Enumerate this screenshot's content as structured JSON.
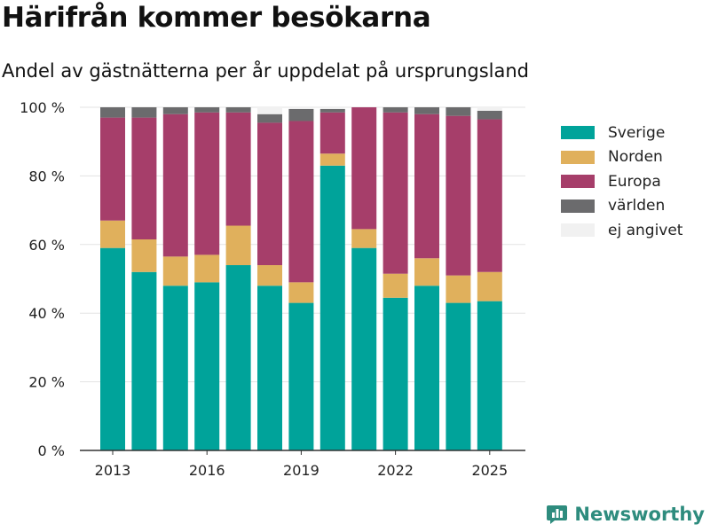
{
  "header": {
    "title": "Härifrån kommer besökarna",
    "subtitle": "Andel av gästnätterna per år uppdelat på ursprungsland"
  },
  "chart_data": {
    "type": "bar",
    "stacked": true,
    "x": [
      2013,
      2014,
      2015,
      2016,
      2017,
      2018,
      2019,
      2020,
      2021,
      2022,
      2023,
      2024,
      2025
    ],
    "x_tick_labels": [
      "2013",
      "2016",
      "2019",
      "2022",
      "2025"
    ],
    "x_ticks": [
      2013,
      2016,
      2019,
      2022,
      2025
    ],
    "y_tick_labels": [
      "0 %",
      "20 %",
      "40 %",
      "60 %",
      "80 %",
      "100 %"
    ],
    "y_ticks": [
      0,
      20,
      40,
      60,
      80,
      100
    ],
    "ylim": [
      0,
      100
    ],
    "grid": true,
    "legend_position": "right",
    "series": [
      {
        "name": "Sverige",
        "color": "#00a39a",
        "values": [
          59,
          52,
          48,
          49,
          54,
          48,
          43,
          83,
          59,
          44.5,
          48,
          43,
          43.5
        ]
      },
      {
        "name": "Norden",
        "color": "#e0b05c",
        "values": [
          8,
          9.5,
          8.5,
          8,
          11.5,
          6,
          6,
          3.5,
          5.5,
          7,
          8,
          8,
          8.5
        ]
      },
      {
        "name": "Europa",
        "color": "#a63e6a",
        "values": [
          30,
          35.5,
          41.5,
          41.5,
          33,
          41.5,
          47,
          12,
          35.5,
          47,
          42,
          46.5,
          44.5
        ]
      },
      {
        "name": "världen",
        "color": "#6b6b6d",
        "values": [
          3,
          3,
          2,
          1.5,
          1.5,
          2.5,
          3.5,
          1,
          0,
          1.5,
          2,
          2.5,
          2.5
        ]
      },
      {
        "name": "ej angivet",
        "color": "#f1f1f1",
        "values": [
          0,
          0,
          0,
          0,
          0,
          2,
          0.5,
          0.5,
          0,
          0,
          0,
          0,
          1
        ]
      }
    ]
  },
  "brand": {
    "name": "Newsworthy",
    "icon": "bar-chart-logo-icon",
    "color": "#2e8c7e"
  }
}
